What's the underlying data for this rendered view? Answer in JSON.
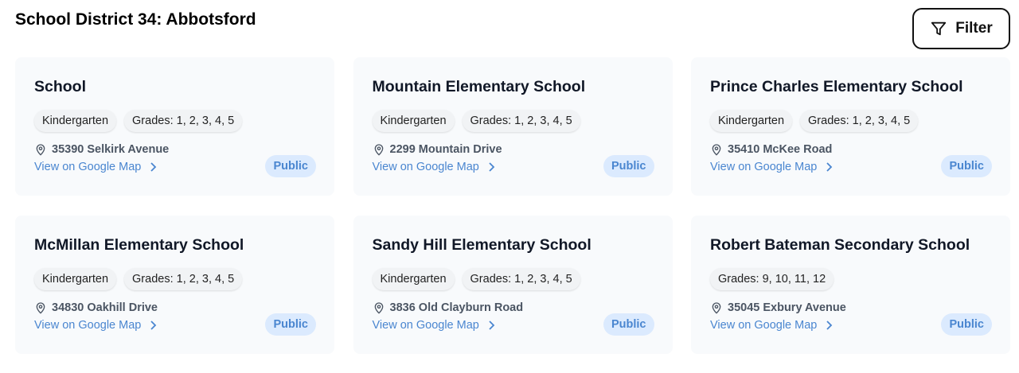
{
  "header": {
    "title": "School District 34: Abbotsford",
    "filter_label": "Filter"
  },
  "schools": [
    {
      "name": "School",
      "chips": [
        "Kindergarten",
        "Grades: 1, 2, 3, 4, 5"
      ],
      "address": "35390 Selkirk Avenue",
      "link": "View on Google Map",
      "type": "Public"
    },
    {
      "name": "Mountain Elementary School",
      "chips": [
        "Kindergarten",
        "Grades: 1, 2, 3, 4, 5"
      ],
      "address": "2299 Mountain Drive",
      "link": "View on Google Map",
      "type": "Public"
    },
    {
      "name": "Prince Charles Elementary School",
      "chips": [
        "Kindergarten",
        "Grades: 1, 2, 3, 4, 5"
      ],
      "address": "35410 McKee Road",
      "link": "View on Google Map",
      "type": "Public"
    },
    {
      "name": "McMillan Elementary School",
      "chips": [
        "Kindergarten",
        "Grades: 1, 2, 3, 4, 5"
      ],
      "address": "34830 Oakhill Drive",
      "link": "View on Google Map",
      "type": "Public"
    },
    {
      "name": "Sandy Hill Elementary School",
      "chips": [
        "Kindergarten",
        "Grades: 1, 2, 3, 4, 5"
      ],
      "address": "3836 Old Clayburn Road",
      "link": "View on Google Map",
      "type": "Public"
    },
    {
      "name": "Robert Bateman Secondary School",
      "chips": [
        "Grades: 9, 10, 11, 12"
      ],
      "address": "35045 Exbury Avenue",
      "link": "View on Google Map",
      "type": "Public"
    }
  ],
  "colors": {
    "accent": "#4a86d0",
    "badge_bg": "#dbeafe",
    "card_bg": "#f8fafc"
  }
}
